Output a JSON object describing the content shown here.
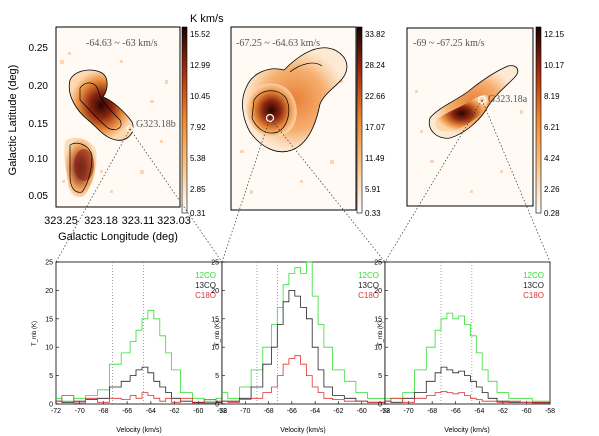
{
  "colorbar_unit": "K km/s",
  "maps": [
    {
      "vel_label": "-64.63 ~ -63 km/s",
      "source_label": "G323.18b",
      "cbar_ticks": [
        "15.52",
        "12.99",
        "10.45",
        "7.92",
        "5.38",
        "2.85",
        "0.31"
      ]
    },
    {
      "vel_label": "-67.25 ~ -64.63 km/s",
      "source_label": "",
      "cbar_ticks": [
        "33.82",
        "28.24",
        "22.66",
        "17.07",
        "11.49",
        "5.91",
        "0.33"
      ]
    },
    {
      "vel_label": "-69 ~ -67.25 km/s",
      "source_label": "G323.18a",
      "cbar_ticks": [
        "12.15",
        "10.17",
        "8.19",
        "6.21",
        "4.24",
        "2.26",
        "0.28"
      ]
    }
  ],
  "map_axes": {
    "ylabel": "Galactic Latitude (deg)",
    "xlabel": "Galactic Longitude (deg)",
    "yticks": [
      "0.25",
      "0.20",
      "0.15",
      "0.10",
      "0.05"
    ],
    "xticks": [
      "323.25",
      "323.18",
      "323.11",
      "323.03"
    ]
  },
  "spec_axes": {
    "ylabel": "T_mb (K)",
    "xlabel": "Velocity (km/s)",
    "yticks": [
      "0",
      "5",
      "10",
      "15",
      "20",
      "25"
    ],
    "xticks": [
      "-72",
      "-70",
      "-68",
      "-66",
      "-64",
      "-62",
      "-60",
      "-58"
    ]
  },
  "legend": [
    {
      "label": "12CO",
      "color": "#33dd33"
    },
    {
      "label": "13CO",
      "color": "#222222"
    },
    {
      "label": "C18O",
      "color": "#dd3333"
    }
  ],
  "chart_data": [
    {
      "type": "line",
      "panel": "left",
      "xlim": [
        -72,
        -58
      ],
      "ylim": [
        0,
        25
      ],
      "vlines": [
        -67.25,
        -64.63
      ],
      "x": [
        -72,
        -71,
        -70,
        -69,
        -68,
        -67,
        -66,
        -65.5,
        -65,
        -64.5,
        -64,
        -63.5,
        -63,
        -62.5,
        -62,
        -61,
        -60,
        -59,
        -58
      ],
      "series": [
        {
          "name": "12CO",
          "color": "#33dd33",
          "values": [
            1,
            0.5,
            1,
            1.5,
            2.5,
            7,
            9,
            11,
            13,
            15,
            16.5,
            15,
            12,
            9,
            6,
            2,
            1,
            0.5,
            1
          ]
        },
        {
          "name": "13CO",
          "color": "#222222",
          "values": [
            0.5,
            0.3,
            0.5,
            0.8,
            1,
            3,
            4,
            5,
            6,
            6.5,
            5.5,
            4,
            3,
            2,
            1,
            0.5,
            0.3,
            0.2,
            0.3
          ]
        },
        {
          "name": "C18O",
          "color": "#dd3333",
          "values": [
            0.5,
            1.5,
            0.2,
            1,
            0.3,
            1,
            0.8,
            1.5,
            1,
            2,
            1.5,
            1,
            0.5,
            1,
            0.3,
            1,
            0.2,
            0.8,
            0.5
          ]
        }
      ]
    },
    {
      "type": "line",
      "panel": "middle",
      "xlim": [
        -72,
        -58
      ],
      "ylim": [
        0,
        25
      ],
      "vlines": [
        -69,
        -67.25
      ],
      "x": [
        -72,
        -71,
        -70,
        -69,
        -68,
        -67.5,
        -67,
        -66.5,
        -66,
        -65.5,
        -65,
        -64.5,
        -64,
        -63.5,
        -63,
        -62,
        -61,
        -60,
        -59,
        -58
      ],
      "series": [
        {
          "name": "12CO",
          "color": "#33dd33",
          "values": [
            2,
            1,
            3,
            6,
            10,
            14,
            17,
            21,
            23,
            24,
            23,
            25,
            19,
            14,
            10,
            6,
            4,
            2,
            1,
            1
          ]
        },
        {
          "name": "13CO",
          "color": "#222222",
          "values": [
            0.5,
            0.5,
            1,
            3,
            7,
            10,
            14,
            18,
            20,
            19,
            17,
            15,
            10,
            6,
            3,
            1.5,
            1,
            0.5,
            0.3,
            0.3
          ]
        },
        {
          "name": "C18O",
          "color": "#dd3333",
          "values": [
            0.5,
            0.3,
            0.8,
            1,
            2,
            3,
            5,
            7,
            8,
            8.5,
            7,
            5,
            3,
            2,
            1,
            0.8,
            0.5,
            0.5,
            0.3,
            0.3
          ]
        }
      ]
    },
    {
      "type": "line",
      "panel": "right",
      "xlim": [
        -72,
        -58
      ],
      "ylim": [
        0,
        25
      ],
      "vlines": [
        -67.25,
        -64.63
      ],
      "x": [
        -72,
        -71,
        -70,
        -69,
        -68,
        -67.5,
        -67,
        -66.5,
        -66,
        -65.5,
        -65,
        -64.5,
        -64,
        -63.5,
        -63,
        -62,
        -61,
        -60,
        -59,
        -58
      ],
      "series": [
        {
          "name": "12CO",
          "color": "#33dd33",
          "values": [
            1,
            1,
            2,
            6,
            10,
            13,
            15,
            16,
            15,
            15.5,
            14,
            12,
            9,
            6,
            4,
            2,
            1,
            1,
            0.5,
            0.5
          ]
        },
        {
          "name": "13CO",
          "color": "#222222",
          "values": [
            0.5,
            0.3,
            1,
            2,
            4,
            5.5,
            6.5,
            6,
            5.5,
            5.8,
            5,
            4,
            3,
            2,
            1,
            0.5,
            0.3,
            0.3,
            0.2,
            0.2
          ]
        },
        {
          "name": "C18O",
          "color": "#dd3333",
          "values": [
            0.5,
            1,
            0.3,
            1,
            1.5,
            2,
            2.2,
            2,
            1.8,
            2,
            1.5,
            1,
            0.8,
            0.5,
            0.5,
            0.3,
            0.5,
            0.3,
            0.3,
            0.3
          ]
        }
      ]
    }
  ]
}
